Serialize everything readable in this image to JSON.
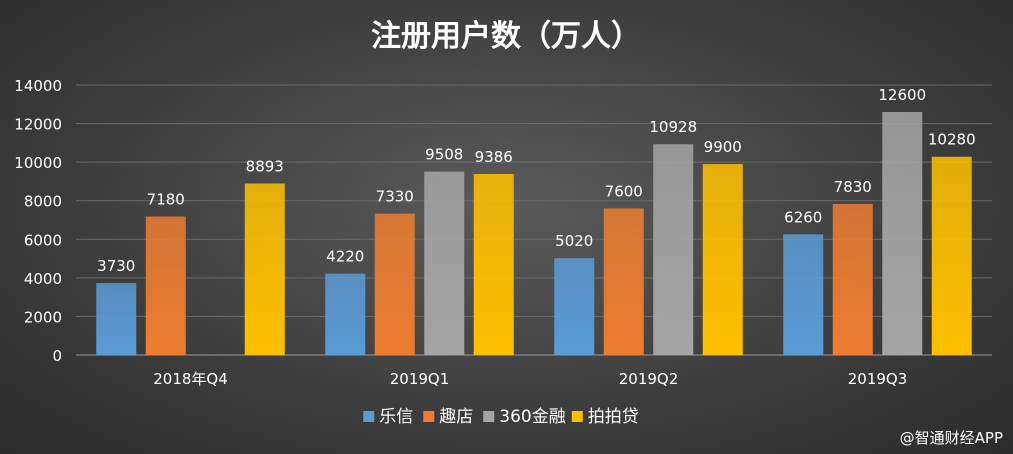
{
  "chart_data": {
    "type": "bar",
    "title": "注册用户数（万人）",
    "categories": [
      "2018年Q4",
      "2019Q1",
      "2019Q2",
      "2019Q3"
    ],
    "ylim": [
      0,
      14000
    ],
    "yticks": [
      "0",
      "2000",
      "4000",
      "6000",
      "8000",
      "10000",
      "12000",
      "14000"
    ],
    "grid": true,
    "legend_position": "bottom",
    "series": [
      {
        "name": "乐信",
        "color": "#5b9bd5",
        "values": [
          3730,
          4220,
          5020,
          6260
        ]
      },
      {
        "name": "趣店",
        "color": "#ed7d31",
        "values": [
          7180,
          7330,
          7600,
          7830
        ]
      },
      {
        "name": "360金融",
        "color": "#a5a5a5",
        "values": [
          null,
          9508,
          10928,
          12600
        ]
      },
      {
        "name": "拍拍贷",
        "color": "#ffc000",
        "values": [
          8893,
          9386,
          9900,
          10280
        ]
      }
    ]
  },
  "watermark": "@智通财经APP"
}
